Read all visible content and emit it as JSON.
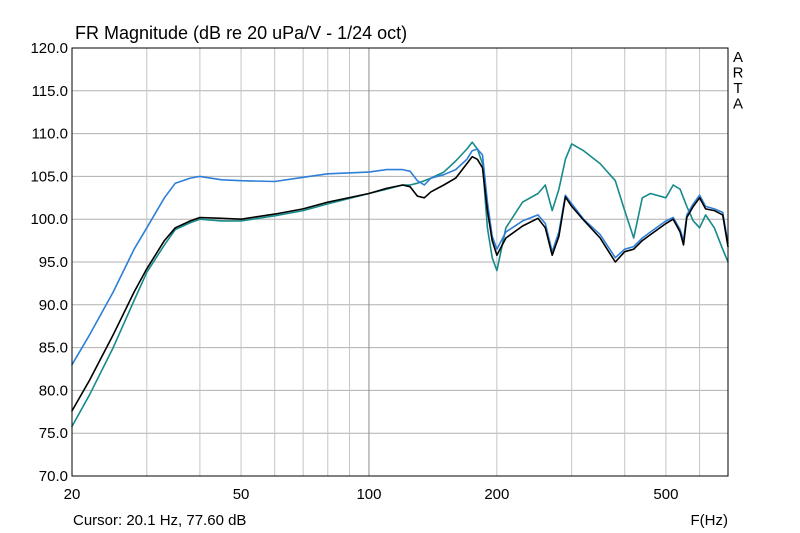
{
  "chart_data": {
    "type": "line",
    "title": "FR Magnitude (dB re 20 uPa/V - 1/24 oct)",
    "xlabel": "F(Hz)",
    "ylabel": "",
    "x_scale": "log",
    "xlim": [
      20,
      700
    ],
    "ylim": [
      70,
      120
    ],
    "grid": true,
    "x_ticks": [
      20,
      50,
      100,
      200,
      500
    ],
    "x_tick_labels": [
      "20",
      "50",
      "100",
      "200",
      "500"
    ],
    "y_ticks": [
      70,
      75,
      80,
      85,
      90,
      95,
      100,
      105,
      110,
      115,
      120
    ],
    "y_tick_labels": [
      "70.0",
      "75.0",
      "80.0",
      "85.0",
      "90.0",
      "95.0",
      "100.0",
      "105.0",
      "110.0",
      "115.0",
      "120.0"
    ],
    "brand": [
      "A",
      "R",
      "T",
      "A"
    ],
    "cursor_text": "Cursor: 20.1 Hz, 77.60 dB",
    "series": [
      {
        "color": "#000000",
        "x": [
          20,
          22,
          25,
          28,
          30,
          33,
          35,
          38,
          40,
          45,
          50,
          60,
          70,
          80,
          100,
          110,
          120,
          125,
          130,
          135,
          140,
          150,
          160,
          170,
          175,
          180,
          185,
          190,
          195,
          200,
          210,
          230,
          250,
          260,
          270,
          280,
          290,
          300,
          320,
          350,
          380,
          400,
          420,
          440,
          460,
          500,
          520,
          540,
          550,
          560,
          580,
          600,
          620,
          650,
          680,
          700
        ],
        "y": [
          77.6,
          81.2,
          86.5,
          91.5,
          94.2,
          97.5,
          99.0,
          99.8,
          100.2,
          100.1,
          100.0,
          100.6,
          101.2,
          102.0,
          103.0,
          103.6,
          104.0,
          103.8,
          102.7,
          102.5,
          103.2,
          104.0,
          104.8,
          106.5,
          107.3,
          107.0,
          106.0,
          101.0,
          97.5,
          95.8,
          97.8,
          99.2,
          100.1,
          99.0,
          95.8,
          98.0,
          102.6,
          101.5,
          99.9,
          97.8,
          95.0,
          96.2,
          96.5,
          97.5,
          98.2,
          99.5,
          100.0,
          98.5,
          97.0,
          100.2,
          101.5,
          102.5,
          101.2,
          101.0,
          100.5,
          96.8
        ]
      },
      {
        "color": "#2e7fd8",
        "x": [
          20,
          22,
          25,
          28,
          30,
          33,
          35,
          38,
          40,
          45,
          50,
          60,
          70,
          80,
          100,
          110,
          120,
          125,
          130,
          135,
          140,
          150,
          160,
          170,
          175,
          180,
          185,
          190,
          195,
          200,
          210,
          230,
          250,
          260,
          270,
          280,
          290,
          300,
          320,
          350,
          380,
          400,
          420,
          440,
          460,
          500,
          520,
          540,
          550,
          560,
          580,
          600,
          620,
          650,
          680,
          700
        ],
        "y": [
          83.0,
          86.5,
          91.5,
          96.5,
          99.0,
          102.5,
          104.2,
          104.8,
          105.0,
          104.6,
          104.5,
          104.4,
          104.9,
          105.3,
          105.5,
          105.8,
          105.8,
          105.6,
          104.5,
          104.0,
          104.8,
          105.2,
          105.8,
          107.0,
          108.0,
          108.2,
          107.5,
          102.0,
          98.0,
          96.5,
          98.5,
          99.8,
          100.5,
          99.5,
          96.2,
          98.5,
          102.8,
          101.8,
          100.0,
          98.2,
          95.5,
          96.5,
          96.8,
          97.8,
          98.5,
          99.8,
          100.2,
          98.8,
          97.5,
          100.5,
          101.8,
          102.8,
          101.5,
          101.2,
          100.8,
          97.2
        ]
      },
      {
        "color": "#188a8a",
        "x": [
          20,
          22,
          25,
          28,
          30,
          33,
          35,
          38,
          40,
          45,
          50,
          60,
          70,
          80,
          100,
          110,
          120,
          125,
          130,
          135,
          140,
          150,
          160,
          170,
          175,
          180,
          185,
          190,
          195,
          200,
          210,
          230,
          250,
          260,
          270,
          280,
          290,
          300,
          320,
          350,
          380,
          400,
          420,
          440,
          460,
          500,
          520,
          540,
          560,
          580,
          600,
          620,
          650,
          680,
          700
        ],
        "y": [
          75.8,
          79.5,
          85.0,
          90.5,
          93.8,
          97.0,
          98.8,
          99.6,
          100.0,
          99.8,
          99.8,
          100.4,
          101.0,
          101.8,
          103.0,
          103.5,
          104.0,
          104.0,
          104.2,
          104.5,
          104.8,
          105.5,
          106.8,
          108.2,
          109.0,
          108.2,
          106.5,
          99.0,
          95.5,
          94.0,
          99.0,
          102.0,
          103.0,
          104.0,
          101.0,
          103.5,
          107.0,
          108.8,
          108.0,
          106.5,
          104.5,
          101.0,
          97.8,
          102.5,
          103.0,
          102.5,
          104.0,
          103.5,
          101.5,
          99.8,
          99.0,
          100.5,
          99.0,
          96.5,
          95.0
        ]
      }
    ]
  }
}
